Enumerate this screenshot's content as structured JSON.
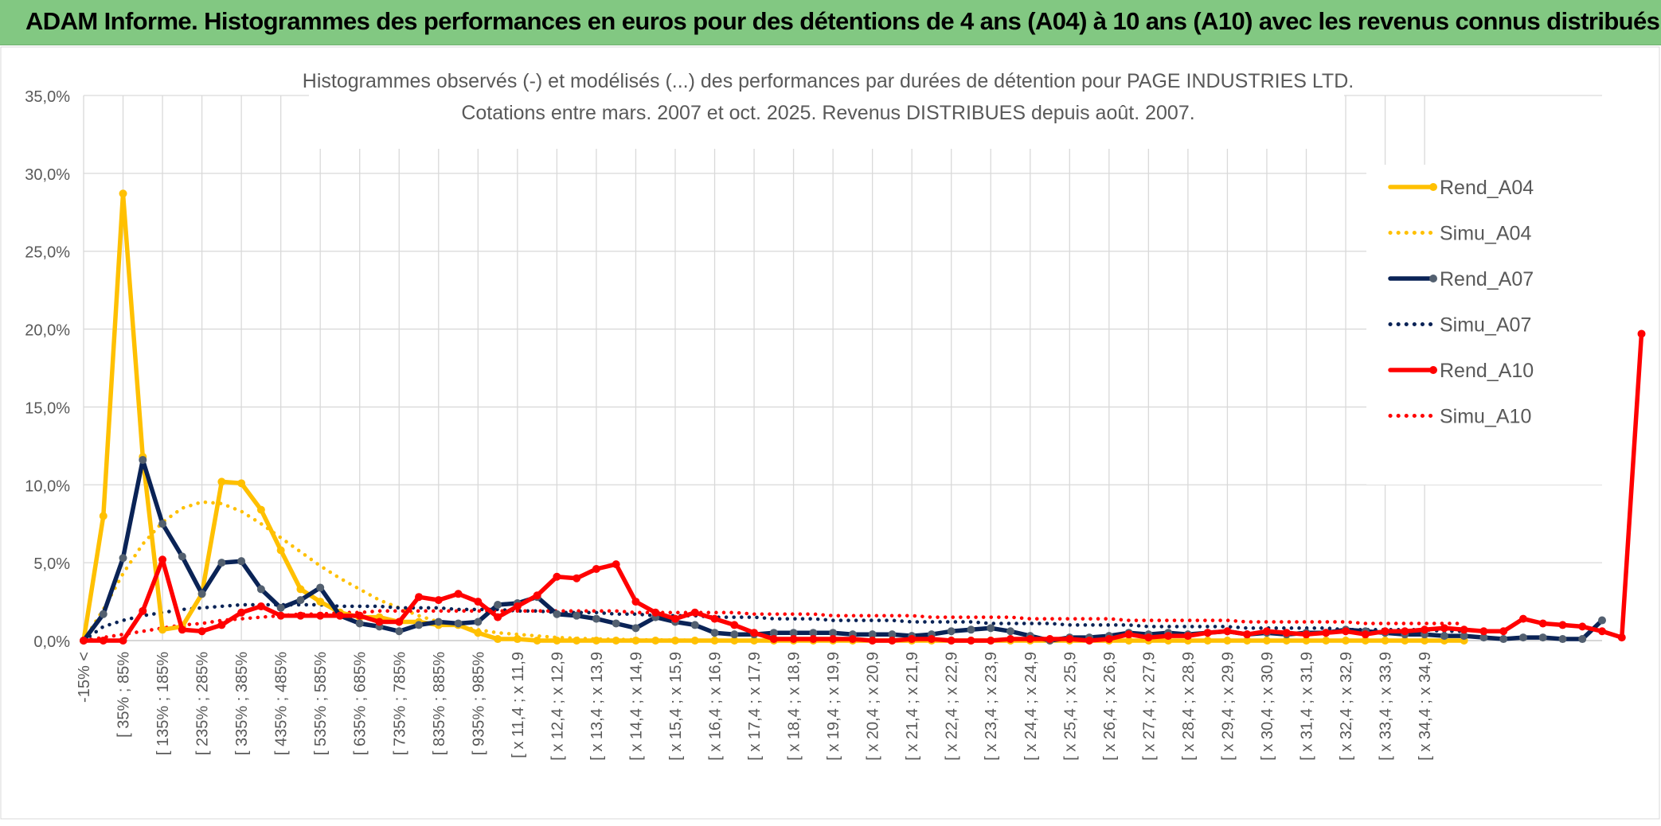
{
  "banner": {
    "title": "ADAM Informe. Histogrammes des performances en euros pour des détentions de 4 ans (A04) à 10 ans (A10) avec les revenus connus distribués"
  },
  "colors": {
    "banner": "#82c882",
    "A04": "#ffc000",
    "A07": "#0a2356",
    "A07_marker": "#536070",
    "A10": "#ff0000",
    "grid": "#d9d9d9",
    "text": "#595959"
  },
  "chart_data": {
    "type": "line",
    "title": "Histogrammes observés (-) et modélisés (...) des performances par durées de détention pour PAGE INDUSTRIES LTD.",
    "subtitle": "Cotations entre mars. 2007 et oct. 2025. Revenus DISTRIBUES depuis août. 2007.",
    "y_axis": {
      "min": 0,
      "max": 35,
      "step": 5,
      "format": "percent_1dec",
      "ticks": [
        "0,0%",
        "5,0%",
        "10,0%",
        "15,0%",
        "20,0%",
        "25,0%",
        "30,0%",
        "35,0%"
      ]
    },
    "legend_position": "right",
    "x_tick_labels": [
      "-15% <",
      "[ 35% ; 85%",
      "[ 135% ; 185%",
      "[ 235% ; 285%",
      "[ 335% ; 385%",
      "[ 435% ; 485%",
      "[ 535% ; 585%",
      "[ 635% ; 685%",
      "[ 735% ; 785%",
      "[ 835% ; 885%",
      "[ 935% ; 985%",
      "[ x 11,4 ; x 11,9",
      "[ x 12,4 ; x 12,9",
      "[ x 13,4 ; x 13,9",
      "[ x 14,4 ; x 14,9",
      "[ x 15,4 ; x 15,9",
      "[ x 16,4 ; x 16,9",
      "[ x 17,4 ; x 17,9",
      "[ x 18,4 ; x 18,9",
      "[ x 19,4 ; x 19,9",
      "[ x 20,4 ; x 20,9",
      "[ x 21,4 ; x 21,9",
      "[ x 22,4 ; x 22,9",
      "[ x 23,4 ; x 23,9",
      "[ x 24,4 ; x 24,9",
      "[ x 25,4 ; x 25,9",
      "[ x 26,4 ; x 26,9",
      "[ x 27,4 ; x 27,9",
      "[ x 28,4 ; x 28,9",
      "[ x 29,4 ; x 29,9",
      "[ x 30,4 ; x 30,9",
      "[ x 31,4 ; x 31,9",
      "[ x 32,4 ; x 32,9",
      "[ x 33,4 ; x 33,9",
      "[ x 34,4 ; x 34,9"
    ],
    "series": [
      {
        "name": "Rend_A04",
        "style": "solid",
        "markers": true,
        "color": "#ffc000",
        "values": [
          0,
          8.0,
          28.7,
          11.8,
          0.7,
          0.9,
          3.0,
          10.2,
          10.1,
          8.4,
          5.8,
          3.3,
          2.5,
          1.8,
          1.5,
          1.5,
          1.2,
          1.2,
          1.0,
          1.0,
          0.5,
          0.1,
          0.1,
          0,
          0,
          0,
          0,
          0,
          0,
          0,
          0,
          0,
          0,
          0,
          0,
          0,
          0,
          0,
          0,
          0,
          0,
          0,
          0,
          0,
          0,
          0,
          0,
          0,
          0,
          0,
          0,
          0,
          0,
          0,
          0,
          0,
          0,
          0,
          0,
          0,
          0,
          0,
          0,
          0,
          0,
          0,
          0,
          0,
          0,
          0,
          0
        ]
      },
      {
        "name": "Simu_A04",
        "style": "dotted",
        "markers": false,
        "color": "#ffc000",
        "values": [
          0,
          2.0,
          4.3,
          6.2,
          7.6,
          8.5,
          8.9,
          8.8,
          8.3,
          7.5,
          6.6,
          5.7,
          4.8,
          4.0,
          3.3,
          2.6,
          2.1,
          1.6,
          1.2,
          0.9,
          0.7,
          0.5,
          0.4,
          0.3,
          0.2,
          0.15,
          0.1,
          0.08,
          0.05,
          0.04,
          0.03,
          0.02,
          0.01,
          0,
          0,
          0,
          0,
          0,
          0,
          0,
          0,
          0,
          0,
          0,
          0,
          0,
          0,
          0,
          0,
          0,
          0,
          0,
          0,
          0,
          0,
          0,
          0,
          0,
          0,
          0,
          0,
          0,
          0,
          0,
          0,
          0,
          0,
          0,
          0,
          0,
          0
        ]
      },
      {
        "name": "Rend_A07",
        "style": "solid",
        "markers": true,
        "color": "#0a2356",
        "values": [
          0,
          1.7,
          5.3,
          11.6,
          7.5,
          5.4,
          3.0,
          5.0,
          5.1,
          3.3,
          2.1,
          2.6,
          3.4,
          1.6,
          1.1,
          0.9,
          0.6,
          1.0,
          1.2,
          1.1,
          1.2,
          2.3,
          2.4,
          2.8,
          1.7,
          1.6,
          1.4,
          1.1,
          0.8,
          1.5,
          1.2,
          1.0,
          0.5,
          0.4,
          0.4,
          0.5,
          0.5,
          0.5,
          0.5,
          0.4,
          0.4,
          0.4,
          0.3,
          0.4,
          0.6,
          0.7,
          0.8,
          0.6,
          0.3,
          0,
          0.2,
          0.2,
          0.3,
          0.5,
          0.4,
          0.5,
          0.4,
          0.5,
          0.6,
          0.4,
          0.5,
          0.4,
          0.5,
          0.5,
          0.7,
          0.6,
          0.5,
          0.4,
          0.4,
          0.3,
          0.3,
          0.2,
          0.1,
          0.2,
          0.2,
          0.1,
          0.1,
          1.3
        ]
      },
      {
        "name": "Simu_A07",
        "style": "dotted",
        "markers": false,
        "color": "#0a2356",
        "values": [
          0,
          0.9,
          1.3,
          1.6,
          1.8,
          2.0,
          2.1,
          2.2,
          2.3,
          2.3,
          2.3,
          2.3,
          2.3,
          2.2,
          2.2,
          2.2,
          2.1,
          2.1,
          2.1,
          2.0,
          2.0,
          2.0,
          1.9,
          1.9,
          1.8,
          1.8,
          1.8,
          1.7,
          1.7,
          1.6,
          1.6,
          1.6,
          1.5,
          1.5,
          1.5,
          1.4,
          1.4,
          1.4,
          1.3,
          1.3,
          1.3,
          1.3,
          1.2,
          1.2,
          1.2,
          1.2,
          1.1,
          1.1,
          1.1,
          1.1,
          1.0,
          1.0,
          1.0,
          1.0,
          0.9,
          0.9,
          0.9,
          0.9,
          0.9,
          0.8,
          0.8,
          0.8,
          0.8,
          0.8,
          0.7,
          0.7,
          0.7,
          0.7,
          0.7,
          0.6,
          0.6
        ]
      },
      {
        "name": "Rend_A10",
        "style": "solid",
        "markers": true,
        "color": "#ff0000",
        "values": [
          0,
          0,
          0,
          1.9,
          5.2,
          0.7,
          0.6,
          1.0,
          1.8,
          2.2,
          1.6,
          1.6,
          1.6,
          1.6,
          1.6,
          1.2,
          1.2,
          2.8,
          2.6,
          3.0,
          2.5,
          1.5,
          2.2,
          2.9,
          4.1,
          4.0,
          4.6,
          4.9,
          2.5,
          1.8,
          1.4,
          1.8,
          1.4,
          1.0,
          0.5,
          0.1,
          0.1,
          0.1,
          0.1,
          0.1,
          0,
          0,
          0.1,
          0.1,
          0,
          0,
          0,
          0.1,
          0.1,
          0.1,
          0.1,
          0,
          0.1,
          0.4,
          0.2,
          0.3,
          0.3,
          0.5,
          0.6,
          0.4,
          0.6,
          0.5,
          0.4,
          0.5,
          0.6,
          0.4,
          0.6,
          0.6,
          0.7,
          0.8,
          0.7,
          0.6,
          0.6,
          1.4,
          1.1,
          1.0,
          0.9,
          0.6,
          0.2,
          19.7
        ]
      },
      {
        "name": "Simu_A10",
        "style": "dotted",
        "markers": false,
        "color": "#ff0000",
        "values": [
          0,
          0.2,
          0.4,
          0.6,
          0.8,
          1.0,
          1.1,
          1.3,
          1.4,
          1.5,
          1.6,
          1.7,
          1.7,
          1.8,
          1.8,
          1.9,
          1.9,
          1.9,
          1.9,
          1.9,
          1.9,
          1.9,
          1.9,
          1.9,
          1.9,
          1.9,
          1.9,
          1.9,
          1.8,
          1.8,
          1.8,
          1.8,
          1.8,
          1.8,
          1.7,
          1.7,
          1.7,
          1.7,
          1.6,
          1.6,
          1.6,
          1.6,
          1.6,
          1.5,
          1.5,
          1.5,
          1.5,
          1.5,
          1.4,
          1.4,
          1.4,
          1.4,
          1.4,
          1.3,
          1.3,
          1.3,
          1.3,
          1.3,
          1.3,
          1.2,
          1.2,
          1.2,
          1.2,
          1.2,
          1.2,
          1.1,
          1.1,
          1.1,
          1.1,
          1.1,
          1.1
        ]
      }
    ]
  }
}
